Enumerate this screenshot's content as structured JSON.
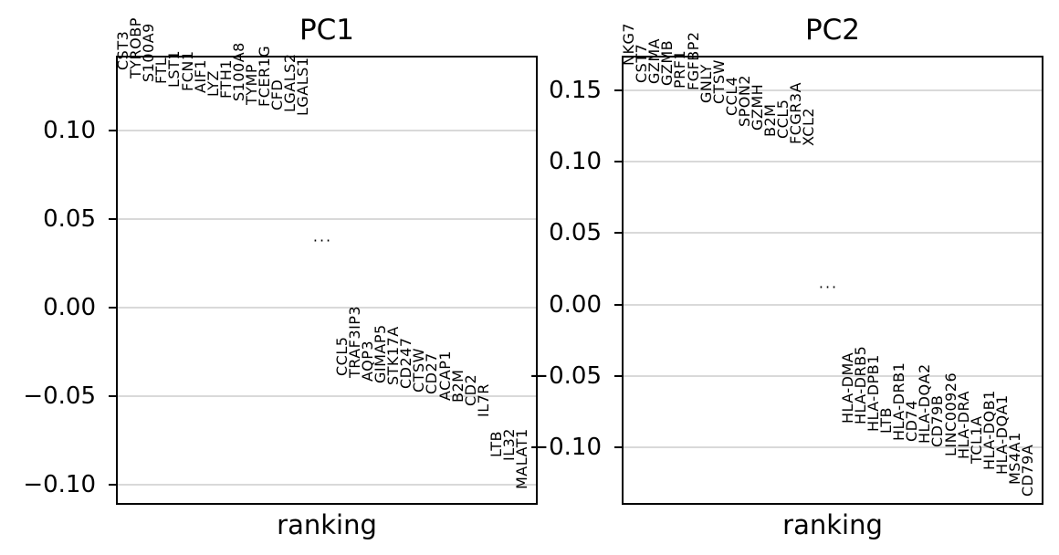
{
  "figure": {
    "background": "#ffffff",
    "text_color": "#000000",
    "grid_color": "#d9d9d9",
    "spine_color": "#000000",
    "ellipsis": "..."
  },
  "chart_data": [
    {
      "type": "scatter",
      "title": "PC1",
      "xlabel": "ranking",
      "ylabel": "",
      "ylim": [
        -0.1116,
        0.142
      ],
      "grid": true,
      "yticks": [
        {
          "value": 0.1,
          "label": "0.10"
        },
        {
          "value": 0.05,
          "label": "0.05"
        },
        {
          "value": 0.0,
          "label": "0.00"
        },
        {
          "value": -0.05,
          "label": "−0.05"
        },
        {
          "value": -0.1,
          "label": "−0.10"
        }
      ],
      "ellipsis_value": 0.039,
      "top_genes": [
        {
          "name": "CST3",
          "loading": 0.134
        },
        {
          "name": "TYROBP",
          "loading": 0.129
        },
        {
          "name": "S100A9",
          "loading": 0.127
        },
        {
          "name": "FTL",
          "loading": 0.126
        },
        {
          "name": "LST1",
          "loading": 0.124
        },
        {
          "name": "FCN1",
          "loading": 0.122
        },
        {
          "name": "AIF1",
          "loading": 0.121
        },
        {
          "name": "LYZ",
          "loading": 0.119
        },
        {
          "name": "FTH1",
          "loading": 0.118
        },
        {
          "name": "S100A8",
          "loading": 0.116
        },
        {
          "name": "TYMP",
          "loading": 0.114
        },
        {
          "name": "FCER1G",
          "loading": 0.113
        },
        {
          "name": "CFD",
          "loading": 0.111
        },
        {
          "name": "LGALS2",
          "loading": 0.11
        },
        {
          "name": "LGALS1",
          "loading": 0.108
        }
      ],
      "bottom_genes": [
        {
          "name": "CCL5",
          "loading": -0.039
        },
        {
          "name": "TRAF3IP3",
          "loading": -0.04
        },
        {
          "name": "AQP3",
          "loading": -0.042
        },
        {
          "name": "GIMAP5",
          "loading": -0.043
        },
        {
          "name": "STK17A",
          "loading": -0.044
        },
        {
          "name": "CD247",
          "loading": -0.046
        },
        {
          "name": "CTSW",
          "loading": -0.048
        },
        {
          "name": "CD27",
          "loading": -0.049
        },
        {
          "name": "ACAP1",
          "loading": -0.053
        },
        {
          "name": "B2M",
          "loading": -0.054
        },
        {
          "name": "CD2",
          "loading": -0.056
        },
        {
          "name": "IL7R",
          "loading": -0.062
        },
        {
          "name": "LTB",
          "loading": -0.085
        },
        {
          "name": "IL32",
          "loading": -0.087
        },
        {
          "name": "MALAT1",
          "loading": -0.103
        }
      ]
    },
    {
      "type": "scatter",
      "title": "PC2",
      "xlabel": "ranking",
      "ylabel": "",
      "ylim": [
        -0.14,
        0.174
      ],
      "grid": true,
      "yticks": [
        {
          "value": 0.15,
          "label": "0.15"
        },
        {
          "value": 0.1,
          "label": "0.10"
        },
        {
          "value": 0.05,
          "label": "0.05"
        },
        {
          "value": 0.0,
          "label": "0.00"
        },
        {
          "value": -0.05,
          "label": "−0.05"
        },
        {
          "value": -0.1,
          "label": "−0.10"
        }
      ],
      "ellipsis_value": 0.014,
      "top_genes": [
        {
          "name": "NKG7",
          "loading": 0.167
        },
        {
          "name": "CST7",
          "loading": 0.155
        },
        {
          "name": "GZMA",
          "loading": 0.154
        },
        {
          "name": "GZMB",
          "loading": 0.153
        },
        {
          "name": "PRF1",
          "loading": 0.151
        },
        {
          "name": "FGFBP2",
          "loading": 0.15
        },
        {
          "name": "GNLY",
          "loading": 0.141
        },
        {
          "name": "CTSW",
          "loading": 0.14
        },
        {
          "name": "CCL4",
          "loading": 0.132
        },
        {
          "name": "SPON2",
          "loading": 0.124
        },
        {
          "name": "GZMH",
          "loading": 0.122
        },
        {
          "name": "B2M",
          "loading": 0.117
        },
        {
          "name": "CCL5",
          "loading": 0.116
        },
        {
          "name": "FCGR3A",
          "loading": 0.112
        },
        {
          "name": "XCL2",
          "loading": 0.111
        }
      ],
      "bottom_genes": [
        {
          "name": "HLA-DMA",
          "loading": -0.083
        },
        {
          "name": "HLA-DRB5",
          "loading": -0.084
        },
        {
          "name": "HLA-DPB1",
          "loading": -0.089
        },
        {
          "name": "LTB",
          "loading": -0.09
        },
        {
          "name": "HLA-DRB1",
          "loading": -0.095
        },
        {
          "name": "CD74",
          "loading": -0.096
        },
        {
          "name": "HLA-DQA2",
          "loading": -0.097
        },
        {
          "name": "CD79B",
          "loading": -0.1
        },
        {
          "name": "LINC00926",
          "loading": -0.106
        },
        {
          "name": "HLA-DRA",
          "loading": -0.108
        },
        {
          "name": "TCL1A",
          "loading": -0.111
        },
        {
          "name": "HLA-DQB1",
          "loading": -0.116
        },
        {
          "name": "HLA-DQA1",
          "loading": -0.119
        },
        {
          "name": "MS4A1",
          "loading": -0.126
        },
        {
          "name": "CD79A",
          "loading": -0.134
        }
      ]
    }
  ]
}
